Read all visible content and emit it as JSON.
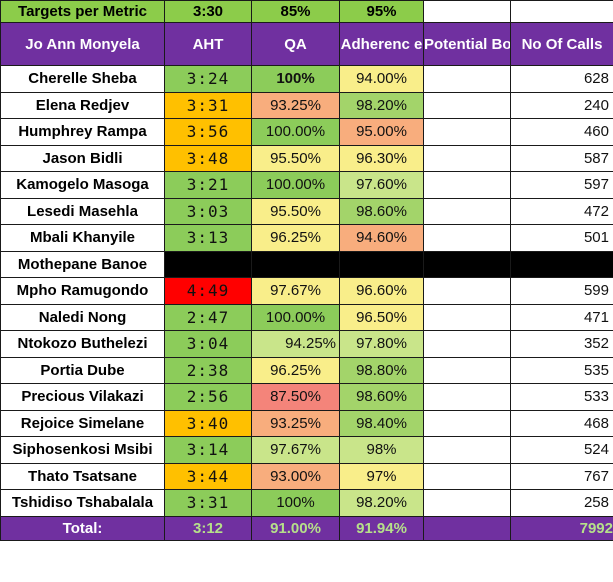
{
  "targets": {
    "label": "Targets per Metric",
    "aht": "3:30",
    "qa": "85%",
    "adherence": "95%",
    "color": "#8ccc4a"
  },
  "header": {
    "team_lead": "Jo Ann Monyela",
    "aht": "AHT",
    "qa": "QA",
    "adherence": "Adherenc e",
    "potential_bonus": "Potential Bonus",
    "calls": "No Of Calls",
    "color": "#7030a0"
  },
  "colors": {
    "red": "#ff0000",
    "orange": "#ffc000",
    "salmon": "#f8ad7d",
    "yellow": "#f9ee8a",
    "lightgreen": "#c9e58a",
    "green": "#8ccc5a",
    "black": "#000000",
    "white": "#ffffff"
  },
  "rows": [
    {
      "name": "Cherelle Sheba",
      "aht": "3:24",
      "qa": "100%",
      "adherence": "94.00%",
      "calls": "628",
      "aht_color": "#8ccc5a",
      "qa_color": "#8ccc5a",
      "adh_color": "#f9ee8a",
      "qa_bold": true
    },
    {
      "name": "Elena Redjev",
      "aht": "3:31",
      "qa": "93.25%",
      "adherence": "98.20%",
      "calls": "240",
      "aht_color": "#ffc000",
      "qa_color": "#f8ad7d",
      "adh_color": "#a3d46a"
    },
    {
      "name": "Humphrey Rampa",
      "aht": "3:56",
      "qa": "100.00%",
      "adherence": "95.00%",
      "calls": "460",
      "aht_color": "#ffc000",
      "qa_color": "#8ccc5a",
      "adh_color": "#f8ad7d"
    },
    {
      "name": "Jason Bidli",
      "aht": "3:48",
      "qa": "95.50%",
      "adherence": "96.30%",
      "calls": "587",
      "aht_color": "#ffc000",
      "qa_color": "#f9ee8a",
      "adh_color": "#f9ee8a"
    },
    {
      "name": "Kamogelo Masoga",
      "aht": "3:21",
      "qa": "100.00%",
      "adherence": "97.60%",
      "calls": "597",
      "aht_color": "#8ccc5a",
      "qa_color": "#8ccc5a",
      "adh_color": "#c9e58a"
    },
    {
      "name": "Lesedi Masehla",
      "aht": "3:03",
      "qa": "95.50%",
      "adherence": "98.60%",
      "calls": "472",
      "aht_color": "#8ccc5a",
      "qa_color": "#f9ee8a",
      "adh_color": "#a3d46a"
    },
    {
      "name": "Mbali Khanyile",
      "aht": "3:13",
      "qa": "96.25%",
      "adherence": "94.60%",
      "calls": "501",
      "aht_color": "#8ccc5a",
      "qa_color": "#f9ee8a",
      "adh_color": "#f8ad7d"
    },
    {
      "name": "Mothepane Banoe",
      "aht": "",
      "qa": "",
      "adherence": "",
      "calls": "",
      "aht_color": "#000000",
      "qa_color": "#000000",
      "adh_color": "#000000",
      "calls_color": "#000000",
      "bonus_color": "#000000"
    },
    {
      "name": "Mpho Ramugondo",
      "aht": "4:49",
      "qa": "97.67%",
      "adherence": "96.60%",
      "calls": "599",
      "aht_color": "#ff0000",
      "qa_color": "#f9ee8a",
      "adh_color": "#f9ee8a"
    },
    {
      "name": "Naledi Nong",
      "aht": "2:47",
      "qa": "100.00%",
      "adherence": "96.50%",
      "calls": "471",
      "aht_color": "#8ccc5a",
      "qa_color": "#8ccc5a",
      "adh_color": "#f9ee8a"
    },
    {
      "name": "Ntokozo Buthelezi",
      "aht": "3:04",
      "qa": "94.25%",
      "adherence": "97.80%",
      "calls": "352",
      "aht_color": "#8ccc5a",
      "qa_color": "#c9e58a",
      "adh_color": "#c9e58a",
      "qa_align": "right"
    },
    {
      "name": "Portia Dube",
      "aht": "2:38",
      "qa": "96.25%",
      "adherence": "98.80%",
      "calls": "535",
      "aht_color": "#8ccc5a",
      "qa_color": "#f9ee8a",
      "adh_color": "#a3d46a"
    },
    {
      "name": "Precious Vilakazi",
      "aht": "2:56",
      "qa": "87.50%",
      "adherence": "98.60%",
      "calls": "533",
      "aht_color": "#8ccc5a",
      "qa_color": "#f4847a",
      "adh_color": "#a3d46a"
    },
    {
      "name": "Rejoice Simelane",
      "aht": "3:40",
      "qa": "93.25%",
      "adherence": "98.40%",
      "calls": "468",
      "aht_color": "#ffc000",
      "qa_color": "#f8ad7d",
      "adh_color": "#a3d46a"
    },
    {
      "name": "Siphosenkosi Msibi",
      "aht": "3:14",
      "qa": "97.67%",
      "adherence": "98%",
      "calls": "524",
      "aht_color": "#8ccc5a",
      "qa_color": "#c9e58a",
      "adh_color": "#c9e58a"
    },
    {
      "name": "Thato Tsatsane",
      "aht": "3:44",
      "qa": "93.00%",
      "adherence": "97%",
      "calls": "767",
      "aht_color": "#ffc000",
      "qa_color": "#f8ad7d",
      "adh_color": "#f9ee8a"
    },
    {
      "name": "Tshidiso Tshabalala",
      "aht": "3:31",
      "qa": "100%",
      "adherence": "98.20%",
      "calls": "258",
      "aht_color": "#8ccc5a",
      "qa_color": "#8ccc5a",
      "adh_color": "#c9e58a"
    }
  ],
  "total": {
    "label": "Total:",
    "aht": "3:12",
    "qa": "91.00%",
    "adherence": "91.94%",
    "calls": "7992"
  }
}
